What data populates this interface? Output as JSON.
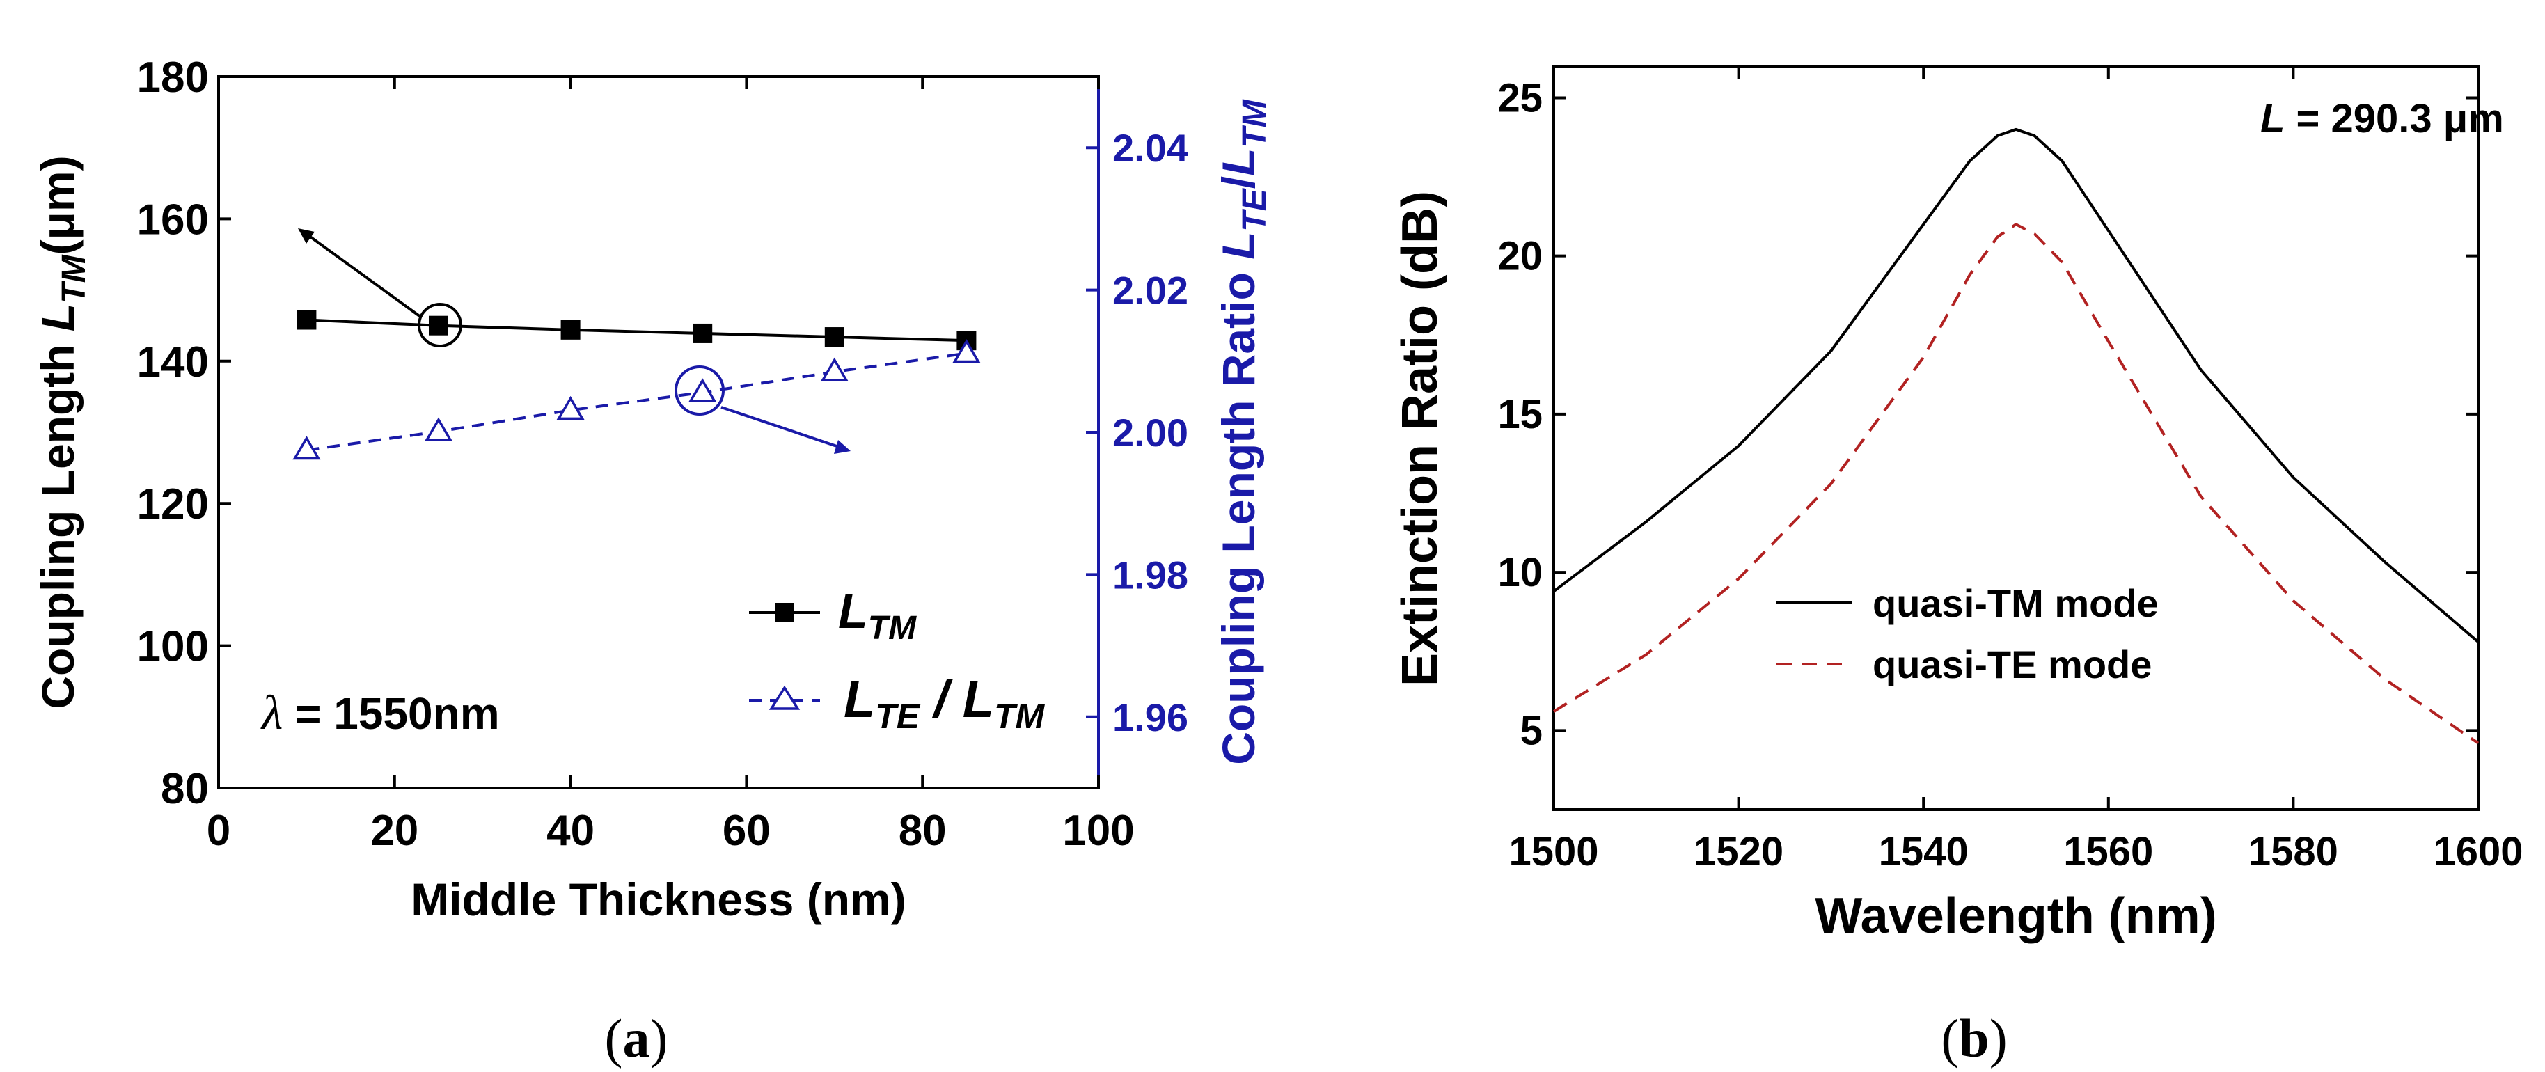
{
  "panel_labels": {
    "a_open": "(",
    "a_letter": "a",
    "a_close": ")",
    "b_open": "(",
    "b_letter": "b",
    "b_close": ")"
  },
  "colors": {
    "tm": "#000000",
    "ratio": "#1a1aa8",
    "te": "#b22222"
  },
  "chart_data": [
    {
      "id": "a",
      "type": "line",
      "xlabel": "Middle Thickness (nm)",
      "ylabel_left": {
        "main": "Coupling Length ",
        "L": "L",
        "sub": "TM",
        "unit": "(μm)"
      },
      "ylabel_right": {
        "main": "Coupling Length Ratio ",
        "L1": "L",
        "sub1": "TE",
        "slash": "/",
        "L2": "L",
        "sub2": "TM"
      },
      "xlim": [
        0,
        100
      ],
      "ylim_left": [
        80,
        180
      ],
      "ylim_right": [
        1.95,
        2.05
      ],
      "xticks": [
        0,
        20,
        40,
        60,
        80,
        100
      ],
      "yticks_left": [
        80,
        100,
        120,
        140,
        160,
        180
      ],
      "yticks_right": [
        1.96,
        1.98,
        2.0,
        2.02,
        2.04
      ],
      "xtick_labels": [
        "0",
        "20",
        "40",
        "60",
        "80",
        "100"
      ],
      "ytick_labels_left": [
        "80",
        "100",
        "120",
        "140",
        "160",
        "180"
      ],
      "ytick_labels_right": [
        "1.96",
        "1.98",
        "2.00",
        "2.02",
        "2.04"
      ],
      "x": [
        10,
        25,
        40,
        55,
        70,
        85
      ],
      "series": [
        {
          "name": "L_TM",
          "axis": "left",
          "marker": "filled-square",
          "line": "solid",
          "values": [
            145.8,
            145.0,
            144.4,
            143.9,
            143.4,
            142.9
          ]
        },
        {
          "name": "L_TE/L_TM",
          "axis": "right",
          "marker": "open-triangle",
          "line": "dashed",
          "values": [
            1.9975,
            2.0001,
            2.0031,
            2.0056,
            2.0085,
            2.0111
          ]
        }
      ],
      "legend": [
        {
          "L": "L",
          "sub": "TM"
        },
        {
          "L1": "L",
          "sub1": "TE",
          "slash": " / ",
          "L2": "L",
          "sub2": "TM"
        }
      ],
      "annotation": {
        "symbol": "λ",
        "text": " = 1550nm"
      },
      "legend_position": "bottom-right"
    },
    {
      "id": "b",
      "type": "line",
      "xlabel": "Wavelength (nm)",
      "ylabel": "Extinction Ratio (dB)",
      "xlim": [
        1500,
        1600
      ],
      "ylim": [
        2.5,
        26
      ],
      "xticks": [
        1500,
        1520,
        1540,
        1560,
        1580,
        1600
      ],
      "yticks": [
        5,
        10,
        15,
        20,
        25
      ],
      "xtick_labels": [
        "1500",
        "1520",
        "1540",
        "1560",
        "1580",
        "1600"
      ],
      "ytick_labels": [
        "5",
        "10",
        "15",
        "20",
        "25"
      ],
      "series": [
        {
          "name": "quasi-TM mode",
          "line": "solid",
          "x": [
            1500,
            1510,
            1520,
            1530,
            1540,
            1545,
            1548,
            1550,
            1552,
            1555,
            1560,
            1570,
            1580,
            1590,
            1600
          ],
          "values": [
            9.4,
            11.6,
            14.0,
            17.0,
            21.0,
            23.0,
            23.8,
            24.0,
            23.8,
            23.0,
            20.8,
            16.4,
            13.0,
            10.3,
            7.8
          ]
        },
        {
          "name": "quasi-TE mode",
          "line": "dashed",
          "x": [
            1500,
            1510,
            1520,
            1530,
            1540,
            1545,
            1548,
            1550,
            1552,
            1555,
            1560,
            1570,
            1580,
            1590,
            1600
          ],
          "values": [
            5.6,
            7.4,
            9.8,
            12.8,
            16.8,
            19.4,
            20.6,
            21.0,
            20.7,
            19.8,
            17.3,
            12.4,
            9.1,
            6.6,
            4.6
          ]
        }
      ],
      "annotation": {
        "L": "L",
        "text": " = 290.3 μm"
      },
      "legend": [
        "quasi-TM mode",
        "quasi-TE mode"
      ],
      "legend_position": "center-left"
    }
  ]
}
